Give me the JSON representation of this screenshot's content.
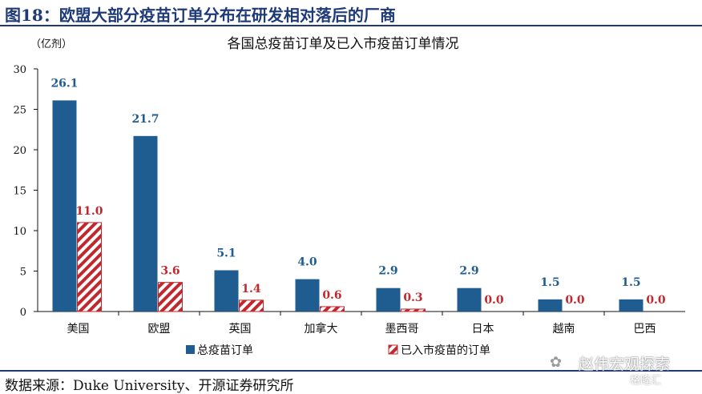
{
  "figure_title": "图18：欧盟大部分疫苗订单分布在研发相对落后的厂商",
  "source_note": "数据来源：Duke University、开源证券研究所",
  "watermark": {
    "text": "赵伟宏观探索",
    "sub": "格隆汇"
  },
  "colors": {
    "series_total": "#1f5c8f",
    "series_market": "#c0282d",
    "title_blue": "#1f3a78"
  },
  "chart_data": {
    "type": "bar",
    "title": "各国总疫苗订单及已入市疫苗订单情况",
    "unit_label": "（亿剂）",
    "categories": [
      "美国",
      "欧盟",
      "英国",
      "加拿大",
      "墨西哥",
      "日本",
      "越南",
      "巴西"
    ],
    "series": [
      {
        "name": "总疫苗订单",
        "values": [
          26.1,
          21.7,
          5.1,
          4.0,
          2.9,
          2.9,
          1.5,
          1.5
        ],
        "labels": [
          "26.1",
          "21.7",
          "5.1",
          "4.0",
          "2.9",
          "2.9",
          "1.5",
          "1.5"
        ]
      },
      {
        "name": "已入市疫苗的订单",
        "values": [
          11.0,
          3.6,
          1.4,
          0.6,
          0.3,
          0.0,
          0.0,
          0.0
        ],
        "labels": [
          "11.0",
          "3.6",
          "1.4",
          "0.6",
          "0.3",
          "0.0",
          "0.0",
          "0.0"
        ]
      }
    ],
    "yticks": [
      "0",
      "5",
      "10",
      "15",
      "20",
      "25",
      "30"
    ],
    "ylim": [
      0,
      30
    ],
    "grid": false,
    "legend_position": "bottom"
  }
}
